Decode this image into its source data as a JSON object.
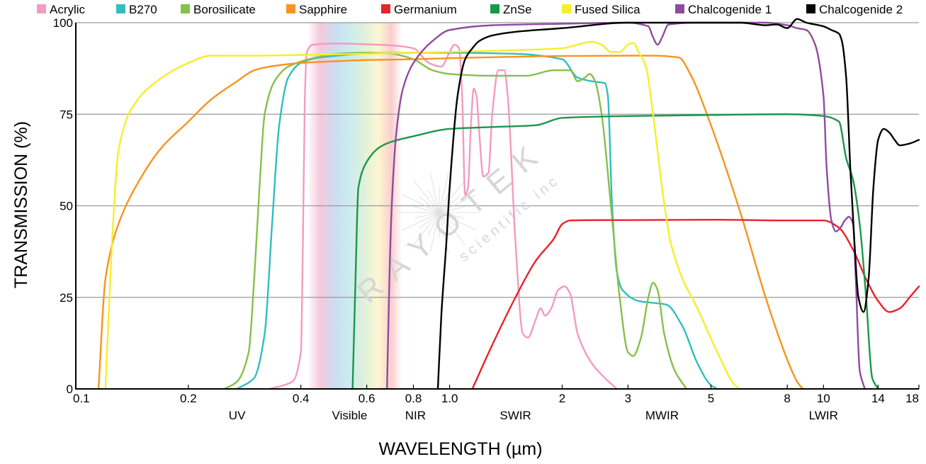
{
  "chart_data": {
    "type": "line",
    "xlabel": "WAVELENGTH (µm)",
    "ylabel": "TRANSMISSION (%)",
    "x_scale": "log",
    "xlim": [
      0.1,
      18
    ],
    "ylim": [
      0,
      100
    ],
    "grid": "horizontal",
    "legend_position": "top",
    "x_ticks": [
      {
        "value": 0.1,
        "label": "0.1"
      },
      {
        "value": 0.2,
        "label": "0.2"
      },
      {
        "value": 0.4,
        "label": "0.4"
      },
      {
        "value": 0.6,
        "label": "0.6"
      },
      {
        "value": 0.8,
        "label": "0.8"
      },
      {
        "value": 1.0,
        "label": "1.0"
      },
      {
        "value": 2,
        "label": "2"
      },
      {
        "value": 3,
        "label": "3"
      },
      {
        "value": 5,
        "label": "5"
      },
      {
        "value": 8,
        "label": "8"
      },
      {
        "value": 10,
        "label": "10"
      },
      {
        "value": 14,
        "label": "14"
      },
      {
        "value": 18,
        "label": "18"
      }
    ],
    "y_ticks": [
      {
        "value": 0,
        "label": "0"
      },
      {
        "value": 25,
        "label": "25"
      },
      {
        "value": 50,
        "label": "50"
      },
      {
        "value": 75,
        "label": "75"
      },
      {
        "value": 100,
        "label": "100"
      }
    ],
    "regions": [
      {
        "label": "UV",
        "x": 0.27
      },
      {
        "label": "Visible",
        "x": 0.54
      },
      {
        "label": "NIR",
        "x": 0.81
      },
      {
        "label": "SWIR",
        "x": 1.5
      },
      {
        "label": "MWIR",
        "x": 3.7
      },
      {
        "label": "LWIR",
        "x": 10
      }
    ],
    "visible_band": [
      0.42,
      0.74
    ],
    "series": [
      {
        "name": "Acrylic",
        "color": "#F49AC2",
        "points": [
          [
            0.33,
            0
          ],
          [
            0.38,
            2
          ],
          [
            0.4,
            10
          ],
          [
            0.405,
            40
          ],
          [
            0.41,
            80
          ],
          [
            0.415,
            92
          ],
          [
            0.43,
            94
          ],
          [
            0.5,
            94.3
          ],
          [
            0.6,
            94.1
          ],
          [
            0.7,
            93.8
          ],
          [
            0.8,
            93
          ],
          [
            0.88,
            89
          ],
          [
            0.95,
            88
          ],
          [
            1.0,
            92
          ],
          [
            1.03,
            94
          ],
          [
            1.06,
            93
          ],
          [
            1.08,
            80
          ],
          [
            1.1,
            53
          ],
          [
            1.12,
            55
          ],
          [
            1.14,
            72
          ],
          [
            1.16,
            82
          ],
          [
            1.18,
            80
          ],
          [
            1.2,
            70
          ],
          [
            1.23,
            58
          ],
          [
            1.27,
            59
          ],
          [
            1.3,
            75
          ],
          [
            1.35,
            87
          ],
          [
            1.4,
            87
          ],
          [
            1.43,
            80
          ],
          [
            1.5,
            40
          ],
          [
            1.57,
            15
          ],
          [
            1.62,
            14
          ],
          [
            1.7,
            19
          ],
          [
            1.75,
            22
          ],
          [
            1.8,
            20
          ],
          [
            1.87,
            22
          ],
          [
            1.95,
            27
          ],
          [
            2.03,
            28
          ],
          [
            2.1,
            26
          ],
          [
            2.2,
            15
          ],
          [
            2.4,
            7
          ],
          [
            2.6,
            3
          ],
          [
            2.8,
            0
          ]
        ]
      },
      {
        "name": "B270",
        "color": "#2EBFBE",
        "points": [
          [
            0.27,
            0
          ],
          [
            0.3,
            3
          ],
          [
            0.32,
            15
          ],
          [
            0.335,
            45
          ],
          [
            0.35,
            72
          ],
          [
            0.37,
            85
          ],
          [
            0.4,
            89
          ],
          [
            0.45,
            90.5
          ],
          [
            0.5,
            91
          ],
          [
            0.6,
            91.6
          ],
          [
            0.8,
            91.8
          ],
          [
            1.0,
            91.8
          ],
          [
            1.5,
            91.5
          ],
          [
            2.0,
            90
          ],
          [
            2.2,
            85
          ],
          [
            2.4,
            84
          ],
          [
            2.6,
            83.5
          ],
          [
            2.65,
            80
          ],
          [
            2.72,
            50
          ],
          [
            2.8,
            32
          ],
          [
            2.9,
            27
          ],
          [
            3.2,
            24
          ],
          [
            3.8,
            23
          ],
          [
            4.2,
            17
          ],
          [
            4.6,
            7
          ],
          [
            5.0,
            1
          ],
          [
            5.2,
            0
          ]
        ]
      },
      {
        "name": "Borosilicate",
        "color": "#86C049",
        "points": [
          [
            0.25,
            0
          ],
          [
            0.27,
            2
          ],
          [
            0.29,
            10
          ],
          [
            0.3,
            30
          ],
          [
            0.31,
            55
          ],
          [
            0.32,
            75
          ],
          [
            0.34,
            84
          ],
          [
            0.37,
            88
          ],
          [
            0.42,
            90
          ],
          [
            0.5,
            91.5
          ],
          [
            0.6,
            91.8
          ],
          [
            0.7,
            91.5
          ],
          [
            0.8,
            90
          ],
          [
            0.9,
            87
          ],
          [
            1.0,
            86
          ],
          [
            1.3,
            85.5
          ],
          [
            1.6,
            85.5
          ],
          [
            1.9,
            87
          ],
          [
            2.1,
            87
          ],
          [
            2.2,
            84
          ],
          [
            2.3,
            85
          ],
          [
            2.37,
            86
          ],
          [
            2.45,
            84
          ],
          [
            2.55,
            75
          ],
          [
            2.7,
            50
          ],
          [
            2.85,
            25
          ],
          [
            3.0,
            10
          ],
          [
            3.1,
            9
          ],
          [
            3.25,
            14
          ],
          [
            3.4,
            25
          ],
          [
            3.5,
            29
          ],
          [
            3.6,
            27
          ],
          [
            3.75,
            15
          ],
          [
            4.0,
            5
          ],
          [
            4.3,
            0
          ]
        ]
      },
      {
        "name": "Sapphire",
        "color": "#F7941D",
        "points": [
          [
            0.115,
            0
          ],
          [
            0.12,
            30
          ],
          [
            0.13,
            45
          ],
          [
            0.15,
            58
          ],
          [
            0.17,
            66
          ],
          [
            0.2,
            73
          ],
          [
            0.23,
            79
          ],
          [
            0.27,
            84
          ],
          [
            0.3,
            87
          ],
          [
            0.33,
            88
          ],
          [
            0.4,
            89
          ],
          [
            0.5,
            89.5
          ],
          [
            0.6,
            89.8
          ],
          [
            0.8,
            90
          ],
          [
            1.0,
            90.3
          ],
          [
            1.5,
            90.7
          ],
          [
            2,
            90.9
          ],
          [
            3,
            91
          ],
          [
            3.5,
            91
          ],
          [
            4.1,
            90.5
          ],
          [
            4.4,
            86
          ],
          [
            5,
            72
          ],
          [
            6,
            48
          ],
          [
            7,
            25
          ],
          [
            8,
            8
          ],
          [
            8.5,
            2
          ],
          [
            8.8,
            0
          ]
        ]
      },
      {
        "name": "Germanium",
        "color": "#E8232A",
        "points": [
          [
            1.15,
            0
          ],
          [
            1.3,
            12
          ],
          [
            1.5,
            25
          ],
          [
            1.7,
            35
          ],
          [
            1.9,
            41
          ],
          [
            2.0,
            45
          ],
          [
            2.1,
            46
          ],
          [
            2.5,
            46.1
          ],
          [
            3,
            46.1
          ],
          [
            5,
            46.2
          ],
          [
            8,
            46
          ],
          [
            10,
            46
          ],
          [
            11,
            44
          ],
          [
            12,
            38
          ],
          [
            13,
            30
          ],
          [
            14,
            24
          ],
          [
            15,
            21
          ],
          [
            16,
            22
          ],
          [
            17,
            25
          ],
          [
            18,
            28
          ]
        ]
      },
      {
        "name": "ZnSe",
        "color": "#1A9849",
        "points": [
          [
            0.55,
            0
          ],
          [
            0.56,
            30
          ],
          [
            0.57,
            55
          ],
          [
            0.6,
            62
          ],
          [
            0.65,
            66
          ],
          [
            0.7,
            67.5
          ],
          [
            0.8,
            69
          ],
          [
            1.0,
            71
          ],
          [
            1.3,
            71.5
          ],
          [
            1.7,
            72
          ],
          [
            2.0,
            74
          ],
          [
            3,
            74.5
          ],
          [
            5,
            74.8
          ],
          [
            8,
            75
          ],
          [
            10,
            74.5
          ],
          [
            11,
            73
          ],
          [
            11.5,
            63
          ],
          [
            12,
            57
          ],
          [
            12.5,
            45
          ],
          [
            13,
            25
          ],
          [
            13.5,
            3
          ],
          [
            14,
            0
          ]
        ]
      },
      {
        "name": "Fused Silica",
        "color": "#F6EE2A",
        "points": [
          [
            0.12,
            0
          ],
          [
            0.125,
            40
          ],
          [
            0.13,
            65
          ],
          [
            0.14,
            76
          ],
          [
            0.16,
            83
          ],
          [
            0.2,
            89
          ],
          [
            0.23,
            91
          ],
          [
            0.3,
            91
          ],
          [
            0.4,
            91.2
          ],
          [
            0.6,
            91.5
          ],
          [
            0.8,
            91.8
          ],
          [
            1.0,
            92
          ],
          [
            1.5,
            92.5
          ],
          [
            2,
            93
          ],
          [
            2.2,
            94
          ],
          [
            2.4,
            94.8
          ],
          [
            2.55,
            94
          ],
          [
            2.7,
            92
          ],
          [
            2.85,
            92
          ],
          [
            3.0,
            94
          ],
          [
            3.1,
            94.5
          ],
          [
            3.2,
            92
          ],
          [
            3.35,
            88
          ],
          [
            3.5,
            75
          ],
          [
            3.7,
            55
          ],
          [
            3.9,
            40
          ],
          [
            4.2,
            30
          ],
          [
            4.6,
            22
          ],
          [
            5.2,
            10
          ],
          [
            5.8,
            1
          ],
          [
            6,
            0
          ]
        ]
      },
      {
        "name": "Chalcogenide 1",
        "color": "#8E4C9E",
        "points": [
          [
            0.68,
            0
          ],
          [
            0.69,
            30
          ],
          [
            0.7,
            50
          ],
          [
            0.72,
            70
          ],
          [
            0.75,
            82
          ],
          [
            0.8,
            89
          ],
          [
            0.9,
            95
          ],
          [
            1.0,
            98
          ],
          [
            1.3,
            99.3
          ],
          [
            2,
            99.7
          ],
          [
            3,
            100
          ],
          [
            3.4,
            99
          ],
          [
            3.5,
            96
          ],
          [
            3.6,
            94
          ],
          [
            3.7,
            96
          ],
          [
            3.85,
            99.5
          ],
          [
            4.5,
            100
          ],
          [
            6,
            100
          ],
          [
            7,
            100
          ],
          [
            8,
            99.3
          ],
          [
            8.5,
            98.5
          ],
          [
            9,
            98
          ],
          [
            9.5,
            94
          ],
          [
            10,
            80
          ],
          [
            10.2,
            60
          ],
          [
            10.5,
            46
          ],
          [
            10.8,
            43
          ],
          [
            11.1,
            44
          ],
          [
            11.4,
            46
          ],
          [
            11.7,
            47
          ],
          [
            12.0,
            45
          ],
          [
            12.2,
            30
          ],
          [
            12.5,
            5
          ],
          [
            12.9,
            0
          ]
        ]
      },
      {
        "name": "Chalcogenide 2",
        "color": "#000000",
        "points": [
          [
            0.93,
            0
          ],
          [
            0.95,
            20
          ],
          [
            0.98,
            40
          ],
          [
            1.0,
            55
          ],
          [
            1.05,
            80
          ],
          [
            1.1,
            90
          ],
          [
            1.15,
            93
          ],
          [
            1.2,
            95
          ],
          [
            1.3,
            96.5
          ],
          [
            1.5,
            97.5
          ],
          [
            2,
            98.5
          ],
          [
            3,
            100
          ],
          [
            4,
            100
          ],
          [
            6,
            100
          ],
          [
            7,
            99.3
          ],
          [
            7.5,
            99.5
          ],
          [
            8,
            98.5
          ],
          [
            8.5,
            101
          ],
          [
            9,
            100
          ],
          [
            10,
            99
          ],
          [
            10.5,
            98
          ],
          [
            11,
            97
          ],
          [
            11.2,
            95
          ],
          [
            11.5,
            85
          ],
          [
            11.8,
            60
          ],
          [
            12.1,
            40
          ],
          [
            12.4,
            25
          ],
          [
            12.8,
            21
          ],
          [
            13.2,
            30
          ],
          [
            13.6,
            55
          ],
          [
            14,
            68
          ],
          [
            14.5,
            71
          ],
          [
            15,
            70
          ],
          [
            15.5,
            68
          ],
          [
            16,
            66.5
          ],
          [
            17,
            67
          ],
          [
            18,
            68
          ]
        ]
      }
    ]
  },
  "watermark": {
    "brand": "RAYOTEK",
    "tagline": "scientific inc"
  }
}
